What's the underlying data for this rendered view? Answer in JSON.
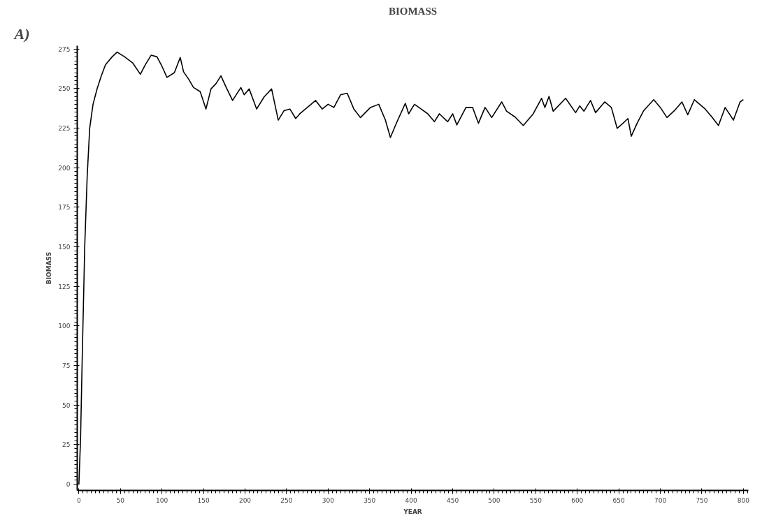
{
  "chart_data": {
    "type": "line",
    "title": "BIOMASS",
    "xlabel": "YEAR",
    "ylabel": "BIOMASS",
    "annotations": [
      "A)"
    ],
    "xlim": [
      -2,
      806
    ],
    "ylim": [
      -4,
      277
    ],
    "xticks": [
      0,
      50,
      100,
      150,
      200,
      250,
      300,
      350,
      400,
      450,
      500,
      550,
      600,
      650,
      700,
      750,
      800
    ],
    "yticks": [
      0,
      25,
      50,
      75,
      100,
      125,
      150,
      175,
      200,
      225,
      250,
      275
    ],
    "grid": false,
    "marker": "none",
    "line_style": "solid",
    "series": [
      {
        "color": "#000000",
        "x": [
          0,
          2,
          4,
          7,
          10,
          13,
          17,
          22,
          27,
          32,
          40,
          46,
          55,
          65,
          72,
          74,
          80,
          87,
          94,
          100,
          106,
          115,
          122,
          126,
          132,
          138,
          146,
          153,
          159,
          165,
          171,
          177,
          185,
          195,
          199,
          205,
          214,
          223,
          232,
          240,
          247,
          254,
          261,
          266,
          275,
          285,
          293,
          300,
          307,
          315,
          323,
          331,
          339,
          351,
          361,
          369,
          375,
          383,
          393,
          397,
          404,
          412,
          420,
          428,
          434,
          444,
          450,
          455,
          466,
          474,
          481,
          489,
          497,
          509,
          515,
          525,
          535,
          547,
          557,
          561,
          566,
          571,
          586,
          598,
          603,
          608,
          616,
          622,
          633,
          641,
          648,
          655,
          661,
          665,
          672,
          680,
          692,
          700,
          708,
          717,
          726,
          733,
          741,
          754,
          762,
          770,
          778,
          788,
          796,
          800
        ],
        "values": [
          0,
          29,
          80,
          150,
          195,
          225,
          240,
          250,
          258,
          265,
          270,
          273,
          270,
          266,
          260.5,
          259,
          265,
          271,
          270,
          264,
          257,
          260,
          269.6,
          260.5,
          256,
          250.6,
          248,
          237,
          249.7,
          253,
          258,
          251,
          242.4,
          250.6,
          246,
          249.7,
          237,
          244.7,
          249.7,
          230,
          236,
          237,
          231,
          234,
          238,
          242.4,
          237,
          240,
          238,
          246,
          247,
          237,
          231.6,
          238,
          240,
          230,
          219,
          229,
          240.6,
          234,
          240,
          237,
          234,
          229,
          234,
          229,
          234,
          227,
          238,
          238,
          228,
          238,
          231.6,
          241.5,
          235.6,
          232,
          226.6,
          234,
          243.8,
          238,
          245,
          235.6,
          243.8,
          234.7,
          239,
          235.6,
          242.4,
          234.7,
          241.5,
          238,
          224.8,
          228,
          231,
          219.8,
          228,
          236,
          242.9,
          238,
          231.6,
          236,
          241.5,
          233.4,
          242.9,
          237,
          232,
          226.6,
          238,
          230,
          241.5,
          243
        ]
      }
    ]
  }
}
